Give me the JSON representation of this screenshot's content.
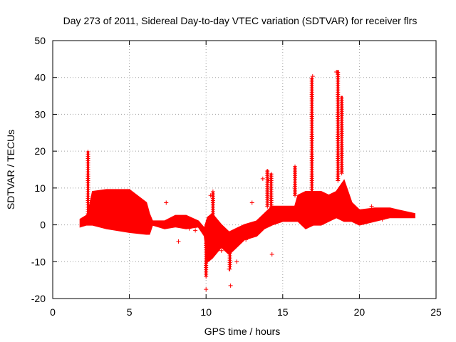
{
  "chart_data": {
    "type": "scatter",
    "title": "Day 273 of 2011, Sidereal Day-to-day VTEC variation (SDTVAR) for receiver flrs",
    "xlabel": "GPS time / hours",
    "ylabel": "SDTVAR / TECUs",
    "xlim": [
      0,
      25
    ],
    "ylim": [
      -20,
      50
    ],
    "x_ticks": [
      0,
      5,
      10,
      15,
      20,
      25
    ],
    "y_ticks": [
      -20,
      -10,
      0,
      10,
      20,
      30,
      40,
      50
    ],
    "grid": true,
    "legend": "none",
    "marker": "+",
    "color": "#ff0000",
    "bands": [
      {
        "x": [
          1.8,
          2.2,
          2.3,
          2.6,
          3.5,
          5,
          6.1,
          6.3,
          6.5,
          7.3,
          8,
          8.7,
          9.5,
          9.9,
          10.1,
          10.4,
          11,
          11.5,
          12,
          12.5,
          13.3,
          13.8,
          14.3,
          15,
          15.8,
          16,
          16.5,
          17,
          17.5,
          18,
          18.5,
          19,
          19.5,
          20,
          21,
          22,
          22.5,
          23.6
        ],
        "lo": [
          -0.5,
          0,
          0,
          0,
          -1,
          -2,
          -2.5,
          -2.5,
          0,
          -1,
          -0.5,
          -1,
          -0.5,
          -3,
          -10,
          -9,
          -6,
          -8,
          -6,
          -4,
          -3,
          -1,
          0,
          1,
          1,
          1,
          -1,
          0,
          0,
          1,
          2,
          1,
          1,
          0,
          1,
          2,
          2,
          2
        ],
        "hi": [
          1.5,
          2.5,
          3,
          9,
          9.5,
          9.5,
          6,
          3,
          1,
          1,
          2.5,
          2.5,
          1,
          -1,
          2,
          3,
          0,
          -2,
          -1,
          0,
          1,
          3,
          5,
          5,
          5,
          8,
          9,
          9,
          9,
          8,
          9,
          12,
          6,
          4,
          4.5,
          4.5,
          4,
          3
        ]
      }
    ],
    "spikes": [
      {
        "x": 2.3,
        "lo": 3,
        "hi": 20
      },
      {
        "x": 10.0,
        "lo": -14,
        "hi": -5
      },
      {
        "x": 10.45,
        "lo": 0,
        "hi": 9
      },
      {
        "x": 11.55,
        "lo": -12,
        "hi": -7
      },
      {
        "x": 14.0,
        "lo": 5,
        "hi": 15
      },
      {
        "x": 14.25,
        "lo": 3,
        "hi": 14
      },
      {
        "x": 15.8,
        "lo": 8,
        "hi": 16
      },
      {
        "x": 16.9,
        "lo": 9,
        "hi": 40
      },
      {
        "x": 18.6,
        "lo": 12,
        "hi": 42
      },
      {
        "x": 18.85,
        "lo": 14,
        "hi": 35
      }
    ],
    "points": [
      {
        "x": 7.4,
        "y": 6
      },
      {
        "x": 8.2,
        "y": -4.5
      },
      {
        "x": 8.9,
        "y": -1
      },
      {
        "x": 9.3,
        "y": -1.5
      },
      {
        "x": 10.0,
        "y": -17.5
      },
      {
        "x": 11.6,
        "y": -16.5
      },
      {
        "x": 11.5,
        "y": -12
      },
      {
        "x": 11.0,
        "y": -7
      },
      {
        "x": 12.0,
        "y": -10
      },
      {
        "x": 14.3,
        "y": -8
      },
      {
        "x": 14.1,
        "y": 12
      },
      {
        "x": 13.7,
        "y": 12.5
      },
      {
        "x": 10.3,
        "y": 8
      },
      {
        "x": 18.5,
        "y": 41.5
      },
      {
        "x": 16.95,
        "y": 40.3
      },
      {
        "x": 19.4,
        "y": 3.5
      },
      {
        "x": 21.5,
        "y": 1.5
      },
      {
        "x": 20.8,
        "y": 5
      },
      {
        "x": 13.0,
        "y": 6
      },
      {
        "x": 12.6,
        "y": -4
      }
    ]
  }
}
